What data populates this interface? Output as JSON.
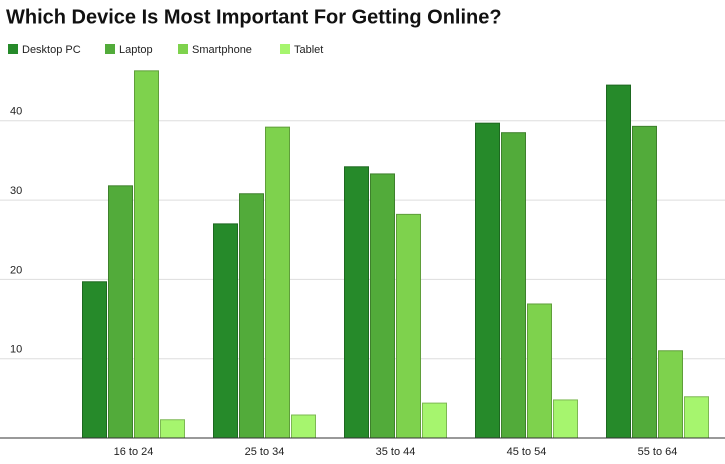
{
  "chart_data": {
    "type": "bar",
    "title": "Which Device Is Most Important For Getting Online?",
    "categories": [
      "16 to 24",
      "25 to 34",
      "35 to 44",
      "45 to 54",
      "55 to 64"
    ],
    "series": [
      {
        "name": "Desktop PC",
        "color": "#268a2a",
        "values": [
          19.7,
          27.0,
          34.2,
          39.7,
          44.5
        ]
      },
      {
        "name": "Laptop",
        "color": "#52ab3a",
        "values": [
          31.8,
          30.8,
          33.3,
          38.5,
          39.3
        ]
      },
      {
        "name": "Smartphone",
        "color": "#7ed24d",
        "values": [
          46.3,
          39.2,
          28.2,
          16.9,
          11.0
        ]
      },
      {
        "name": "Tablet",
        "color": "#a6f56e",
        "values": [
          2.3,
          2.9,
          4.4,
          4.8,
          5.2
        ]
      }
    ],
    "ylim": [
      0,
      50
    ],
    "yticks": [
      10,
      20,
      30,
      40
    ],
    "grid": true
  }
}
